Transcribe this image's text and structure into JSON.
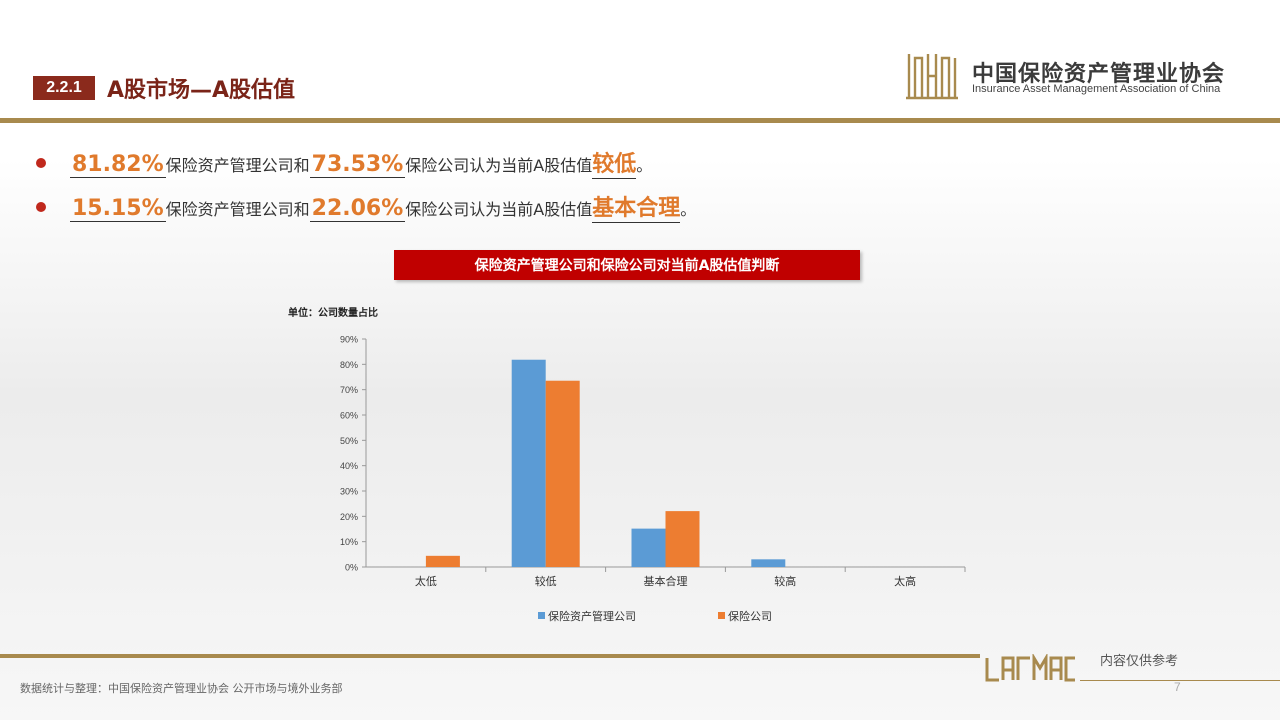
{
  "header": {
    "section_number": "2.2.1",
    "title": "A股市场—A股估值",
    "logo_cn": "中国保险资产管理业协会",
    "logo_en": "Insurance Asset Management Association of China"
  },
  "bullets": [
    {
      "pct1": "81.82%",
      "text1": "保险资产管理公司和",
      "pct2": "73.53%",
      "text2": "保险公司认为当前A股估值",
      "key": "较低",
      "end": "。"
    },
    {
      "pct1": "15.15%",
      "text1": "保险资产管理公司和",
      "pct2": "22.06%",
      "text2": "保险公司认为当前A股估值",
      "key": "基本合理",
      "end": "。"
    }
  ],
  "chart_banner": "保险资产管理公司和保险公司对当前A股估值判断",
  "chart_data": {
    "type": "bar",
    "unit_label": "单位：公司数量占比",
    "categories": [
      "太低",
      "较低",
      "基本合理",
      "较高",
      "太高"
    ],
    "series": [
      {
        "name": "保险资产管理公司",
        "values": [
          0,
          81.82,
          15.15,
          3.03,
          0
        ],
        "color": "#5b9bd5"
      },
      {
        "name": "保险公司",
        "values": [
          4.41,
          73.53,
          22.06,
          0,
          0
        ],
        "color": "#ed7d31"
      }
    ],
    "yticks": [
      "0%",
      "10%",
      "20%",
      "30%",
      "40%",
      "50%",
      "60%",
      "70%",
      "80%",
      "90%"
    ],
    "ylim": [
      0,
      90
    ],
    "legend_position": "bottom"
  },
  "footer": {
    "note": "内容仅供参考",
    "source": "数据统计与整理：中国保险资产管理业协会 公开市场与境外业务部",
    "page": "7"
  }
}
